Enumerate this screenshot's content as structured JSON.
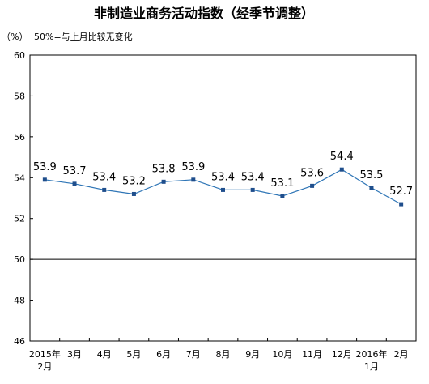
{
  "chart_data": {
    "type": "line",
    "title": "非制造业商务活动指数（经季节调整）",
    "unit_label": "（%）",
    "note": "50%=与上月比较无变化",
    "ylim": [
      46,
      60
    ],
    "yticks": [
      "46",
      "48",
      "50",
      "52",
      "54",
      "56",
      "58",
      "60"
    ],
    "reference_line": 50,
    "categories": [
      [
        "2015年",
        "2月"
      ],
      [
        "3月"
      ],
      [
        "4月"
      ],
      [
        "5月"
      ],
      [
        "6月"
      ],
      [
        "7月"
      ],
      [
        "8月"
      ],
      [
        "9月"
      ],
      [
        "10月"
      ],
      [
        "11月"
      ],
      [
        "12月"
      ],
      [
        "2016年",
        "1月"
      ],
      [
        "2月"
      ]
    ],
    "values": [
      53.9,
      53.7,
      53.4,
      53.2,
      53.8,
      53.9,
      53.4,
      53.4,
      53.1,
      53.6,
      54.4,
      53.5,
      52.7
    ],
    "labels": [
      "53.9",
      "53.7",
      "53.4",
      "53.2",
      "53.8",
      "53.9",
      "53.4",
      "53.4",
      "53.1",
      "53.6",
      "54.4",
      "53.5",
      "52.7"
    ],
    "line_color": "#2e75b6",
    "marker_color": "#1f4e8c",
    "grid": false
  }
}
